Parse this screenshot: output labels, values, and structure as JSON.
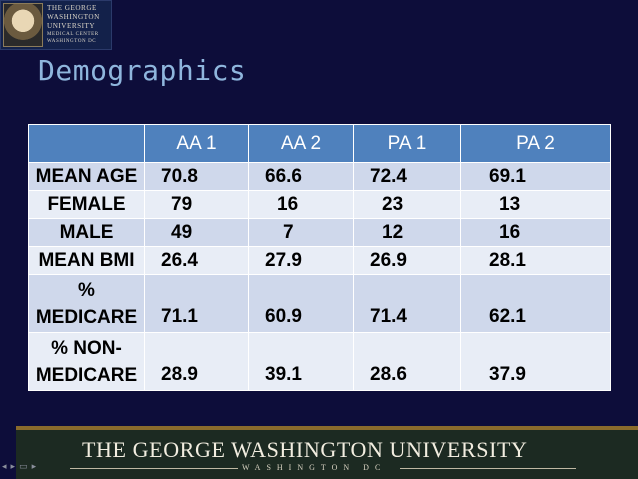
{
  "logo": {
    "line1": "THE GEORGE",
    "line2": "WASHINGTON",
    "line3": "UNIVERSITY",
    "line4": "MEDICAL CENTER",
    "line5": "WASHINGTON DC"
  },
  "title": "Demographics",
  "table": {
    "headers": [
      "",
      "AA 1",
      "AA 2",
      "PA 1",
      "PA 2"
    ],
    "rows": [
      {
        "label": "MEAN AGE",
        "values": [
          "70.8",
          "66.6",
          "72.4",
          "69.1"
        ]
      },
      {
        "label": "FEMALE",
        "values": [
          "79",
          "16",
          "23",
          "13"
        ]
      },
      {
        "label": "MALE",
        "values": [
          "49",
          "7",
          "12",
          "16"
        ]
      },
      {
        "label": "MEAN BMI",
        "values": [
          "26.4",
          "27.9",
          "26.9",
          "28.1"
        ]
      },
      {
        "label_line1": "%",
        "label_line2": "MEDICARE",
        "values": [
          "71.1",
          "60.9",
          "71.4",
          "62.1"
        ]
      },
      {
        "label_line1": "% NON-",
        "label_line2": "MEDICARE",
        "values": [
          "28.9",
          "39.1",
          "28.6",
          "37.9"
        ]
      }
    ]
  },
  "footer": {
    "name": "THE GEORGE WASHINGTON UNIVERSITY",
    "location": "WASHINGTON DC"
  },
  "nav_icons": [
    "prev-icon",
    "next-icon",
    "menu-icon",
    "play-icon"
  ]
}
